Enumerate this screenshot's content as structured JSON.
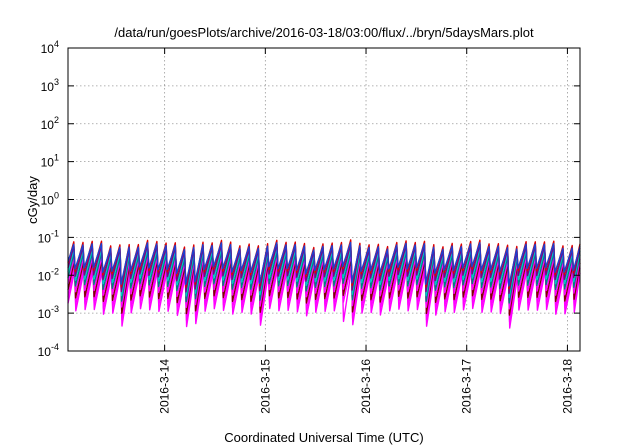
{
  "chart_data": {
    "type": "line",
    "title": "/data/run/goesPlots/archive/2016-03-18/03:00/flux/../bryn/5daysMars.plot",
    "xlabel": "Coordinated Universal Time (UTC)",
    "ylabel": "cGy/day",
    "xlim": [
      "2016-03-13T00:58",
      "2016-03-18T03:00"
    ],
    "ylim": [
      0.0001,
      10000
    ],
    "yscale": "log",
    "grid": true,
    "x_ticks": [
      "2016-3-14",
      "2016-3-15",
      "2016-3-16",
      "2016-3-17",
      "2016-3-18"
    ],
    "y_ticks": [
      {
        "base": "10",
        "exp": "4"
      },
      {
        "base": "10",
        "exp": "3"
      },
      {
        "base": "10",
        "exp": "2"
      },
      {
        "base": "10",
        "exp": "1"
      },
      {
        "base": "10",
        "exp": "0"
      },
      {
        "base": "10",
        "exp": "-1"
      },
      {
        "base": "10",
        "exp": "-2"
      },
      {
        "base": "10",
        "exp": "-3"
      },
      {
        "base": "10",
        "exp": "-4"
      }
    ],
    "pattern": {
      "period_hours": 2.2,
      "note_values": "Sawtooth oscillation; each series rises to a peak then drops sharply every ~2.2 hours"
    },
    "series": [
      {
        "color": "#ff00ff",
        "peak": 0.012,
        "trough": 0.0011
      },
      {
        "color": "#ff00ff",
        "peak": 0.016,
        "trough": 0.0016
      },
      {
        "color": "#800000",
        "peak": 0.022,
        "trough": 0.0024
      },
      {
        "color": "#ff00ff",
        "peak": 0.028,
        "trough": 0.0035
      },
      {
        "color": "#008080",
        "peak": 0.036,
        "trough": 0.005
      },
      {
        "color": "#00c8c8",
        "peak": 0.045,
        "trough": 0.007
      },
      {
        "color": "#800080",
        "peak": 0.055,
        "trough": 0.009
      },
      {
        "color": "#dd0000",
        "peak": 0.07,
        "trough": 0.012
      },
      {
        "color": "#1f3fcf",
        "peak": 0.06,
        "trough": 0.014
      }
    ]
  }
}
